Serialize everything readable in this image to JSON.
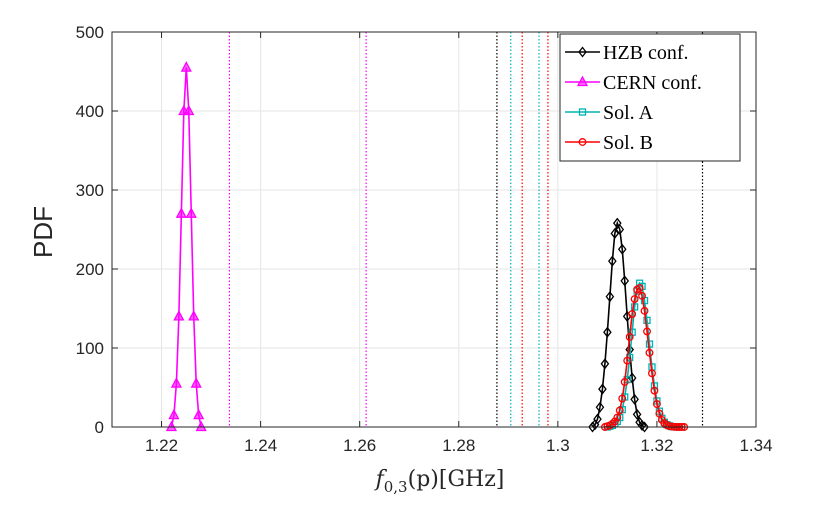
{
  "chart_data": {
    "type": "line",
    "title": "",
    "xlabel": "f_{0,3}(p)[GHz]",
    "xlabel_parts": {
      "f": "f",
      "sub": "0,3",
      "arg": "(p)",
      "unit": "[GHz]"
    },
    "ylabel": "PDF",
    "xlim": [
      1.21,
      1.34
    ],
    "ylim": [
      0,
      500
    ],
    "grid": true,
    "legend_position": "top-right",
    "x_ticks": [
      1.22,
      1.24,
      1.26,
      1.28,
      1.3,
      1.32,
      1.34
    ],
    "x_tick_labels": [
      "1.22",
      "1.24",
      "1.26",
      "1.28",
      "1.3",
      "1.32",
      "1.34"
    ],
    "y_ticks": [
      0,
      100,
      200,
      300,
      400,
      500
    ],
    "y_tick_labels": [
      "0",
      "100",
      "200",
      "300",
      "400",
      "500"
    ],
    "series": [
      {
        "name": "HZB conf.",
        "color": "#000000",
        "marker": "diamond",
        "x": [
          1.307,
          1.3075,
          1.308,
          1.3085,
          1.309,
          1.3095,
          1.31,
          1.3105,
          1.311,
          1.3115,
          1.312,
          1.3125,
          1.313,
          1.3135,
          1.314,
          1.3145,
          1.315,
          1.3155,
          1.316,
          1.3165,
          1.317,
          1.3175
        ],
        "y": [
          0,
          3,
          10,
          25,
          48,
          80,
          120,
          165,
          210,
          245,
          258,
          250,
          225,
          185,
          140,
          98,
          62,
          35,
          16,
          6,
          2,
          0
        ]
      },
      {
        "name": "CERN conf.",
        "color": "#ff00ff",
        "marker": "triangle",
        "x": [
          1.222,
          1.2225,
          1.223,
          1.2235,
          1.224,
          1.2245,
          1.225,
          1.2255,
          1.226,
          1.2265,
          1.227,
          1.2275,
          1.228
        ],
        "y": [
          0,
          15,
          55,
          140,
          270,
          400,
          455,
          400,
          270,
          140,
          55,
          15,
          0
        ]
      },
      {
        "name": "Sol. A",
        "color": "#00b3b3",
        "marker": "square",
        "x": [
          1.31,
          1.3105,
          1.311,
          1.3115,
          1.312,
          1.3125,
          1.313,
          1.3135,
          1.314,
          1.3145,
          1.315,
          1.3155,
          1.316,
          1.3165,
          1.317,
          1.3175,
          1.318,
          1.3185,
          1.319,
          1.3195,
          1.32,
          1.3205,
          1.321,
          1.3215,
          1.322,
          1.3225,
          1.323,
          1.3235,
          1.324,
          1.3245,
          1.325
        ],
        "y": [
          0,
          1,
          2,
          4,
          7,
          12,
          22,
          38,
          60,
          88,
          120,
          152,
          172,
          182,
          178,
          160,
          135,
          105,
          76,
          52,
          33,
          20,
          11,
          6,
          3,
          1.5,
          0.5,
          0.2,
          0,
          0,
          0
        ]
      },
      {
        "name": "Sol. B",
        "color": "#ff0000",
        "marker": "circle",
        "x": [
          1.3095,
          1.31,
          1.3105,
          1.311,
          1.3115,
          1.312,
          1.3125,
          1.313,
          1.3135,
          1.314,
          1.3145,
          1.315,
          1.3155,
          1.316,
          1.3165,
          1.317,
          1.3175,
          1.318,
          1.3185,
          1.319,
          1.3195,
          1.32,
          1.3205,
          1.321,
          1.3215,
          1.322,
          1.3225,
          1.323,
          1.3235,
          1.324,
          1.3245,
          1.325,
          1.3255
        ],
        "y": [
          0,
          1,
          2,
          4,
          7,
          12,
          21,
          36,
          57,
          84,
          114,
          143,
          162,
          174,
          176,
          166,
          147,
          121,
          94,
          68,
          46,
          29,
          17,
          9,
          5,
          2.5,
          1,
          0.5,
          0.2,
          0,
          0,
          0,
          0
        ]
      }
    ],
    "vertical_lines": [
      {
        "x": 1.2337,
        "color": "#ff00ff"
      },
      {
        "x": 1.2613,
        "color": "#ff00ff"
      },
      {
        "x": 1.2877,
        "color": "#000000"
      },
      {
        "x": 1.2905,
        "color": "#00b3b3"
      },
      {
        "x": 1.2928,
        "color": "#ff0000"
      },
      {
        "x": 1.2962,
        "color": "#00b3b3"
      },
      {
        "x": 1.298,
        "color": "#ff0000"
      },
      {
        "x": 1.3292,
        "color": "#000000"
      }
    ]
  }
}
